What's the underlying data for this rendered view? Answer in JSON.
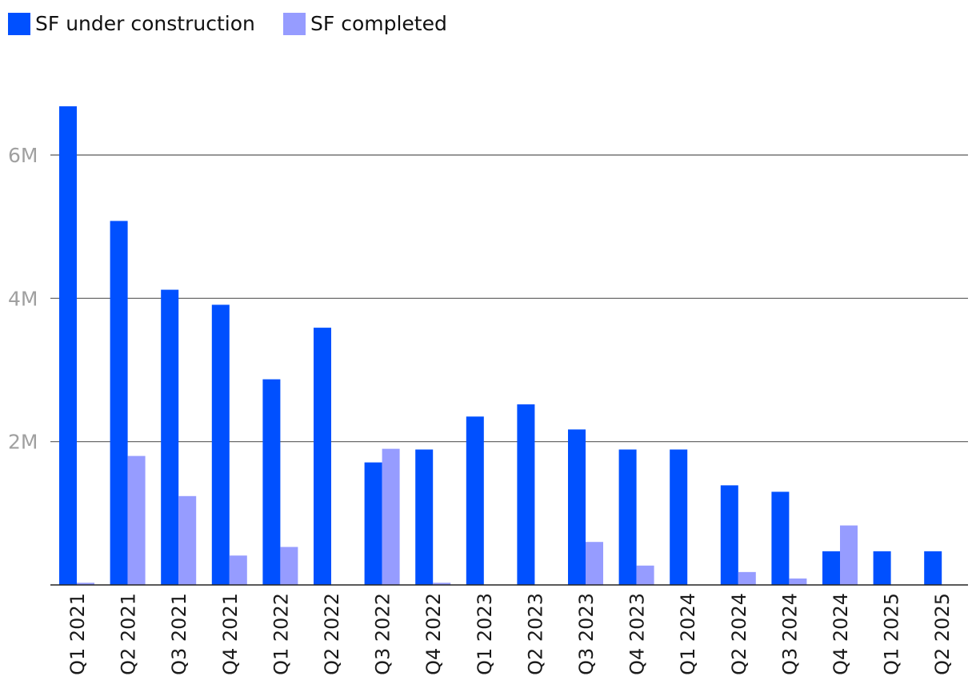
{
  "chart_data": {
    "type": "bar",
    "categories": [
      "Q1 2021",
      "Q2 2021",
      "Q3 2021",
      "Q4 2021",
      "Q1 2022",
      "Q2 2022",
      "Q3 2022",
      "Q4 2022",
      "Q1 2023",
      "Q2 2023",
      "Q3 2023",
      "Q4 2023",
      "Q1 2024",
      "Q2 2024",
      "Q3 2024",
      "Q4 2024",
      "Q1 2025",
      "Q2 2025"
    ],
    "series": [
      {
        "name": "SF under construction",
        "color": "#0050ff",
        "values": [
          6680000,
          5080000,
          4120000,
          3910000,
          2870000,
          3590000,
          1710000,
          1890000,
          2350000,
          2520000,
          2170000,
          1890000,
          1890000,
          1390000,
          1300000,
          470000,
          470000,
          470000
        ]
      },
      {
        "name": "SF completed",
        "color": "#969cff",
        "values": [
          30000,
          1800000,
          1240000,
          410000,
          530000,
          0,
          1900000,
          30000,
          0,
          0,
          600000,
          270000,
          0,
          180000,
          90000,
          830000,
          0,
          0
        ]
      }
    ],
    "yticks": [
      {
        "value": 2000000,
        "label": "2M"
      },
      {
        "value": 4000000,
        "label": "4M"
      },
      {
        "value": 6000000,
        "label": "6M"
      }
    ],
    "ylim": [
      0,
      7000000
    ],
    "grid": true,
    "legend_position": "top-left"
  }
}
